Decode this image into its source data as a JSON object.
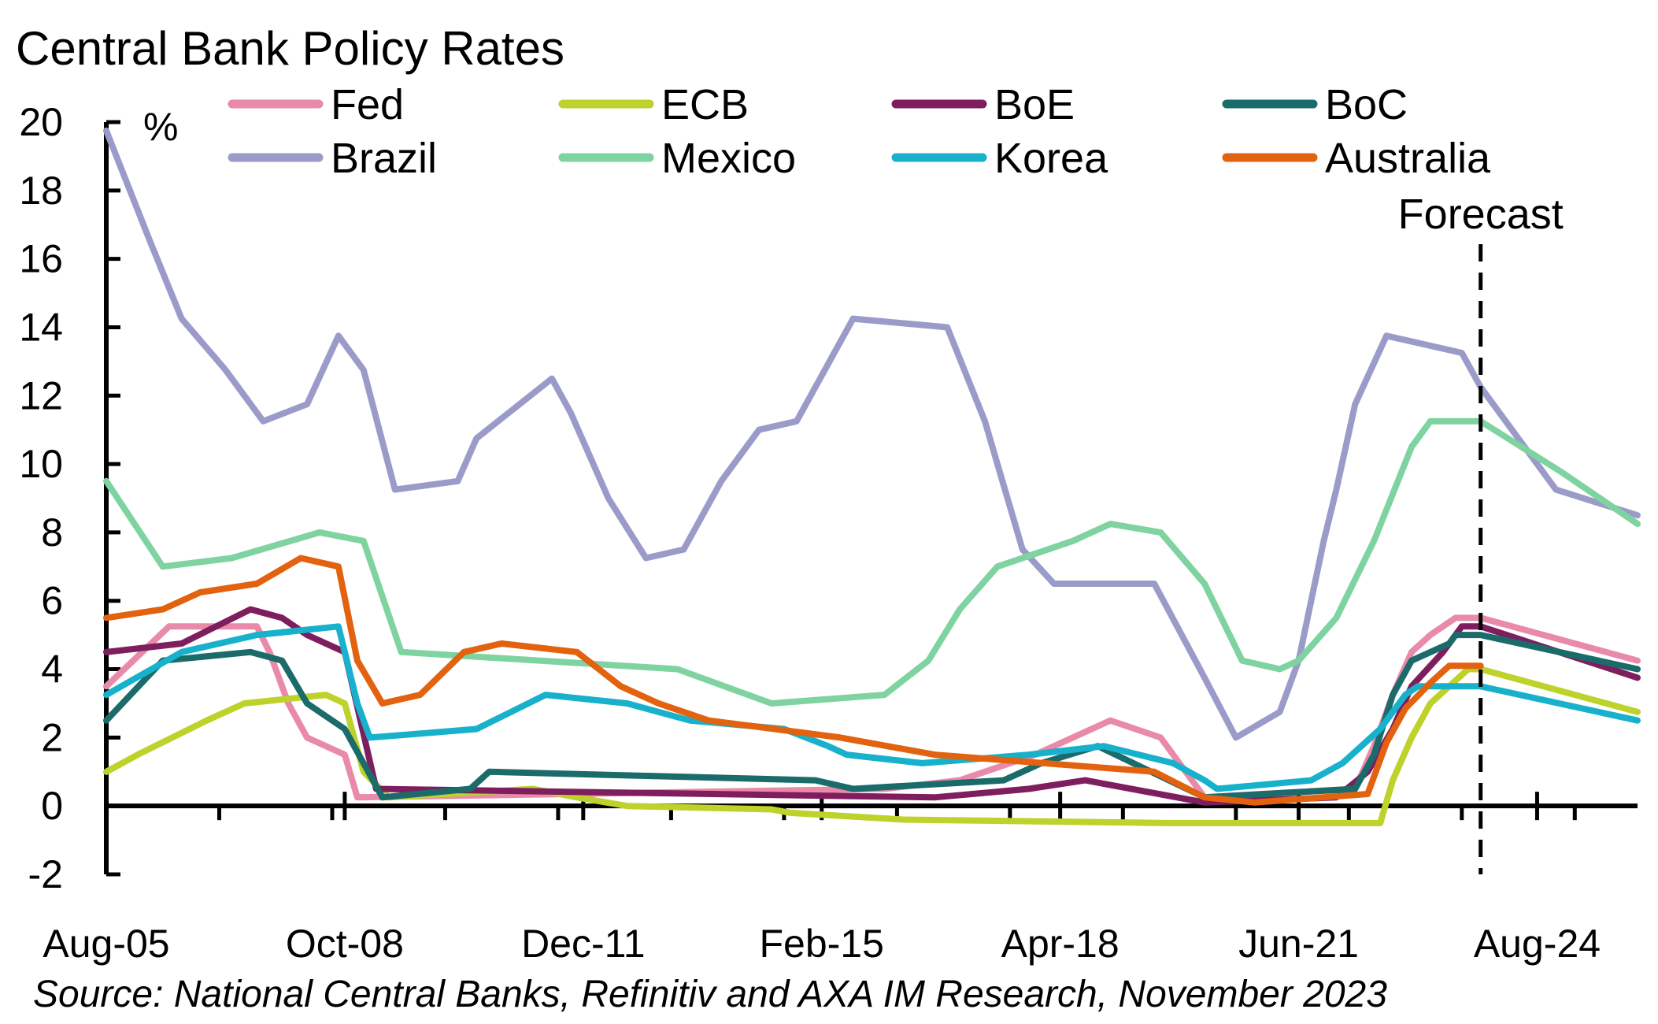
{
  "chart_data": {
    "type": "line",
    "title": "Central Bank Policy Rates",
    "ylabel": "%",
    "xlabel": "",
    "source": "Source: National Central Banks, Refinitiv and AXA IM Research, November 2023",
    "annotation": "Forecast",
    "forecast_start": "2023-11",
    "ylim": [
      -2,
      20
    ],
    "yticks": [
      -2,
      0,
      2,
      4,
      6,
      8,
      10,
      12,
      14,
      16,
      18,
      20
    ],
    "xlim": [
      "2005-08",
      "2025-12"
    ],
    "xticks": [
      {
        "date": "2005-08",
        "label": "Aug-05"
      },
      {
        "date": "2008-10",
        "label": "Oct-08"
      },
      {
        "date": "2011-12",
        "label": "Dec-11"
      },
      {
        "date": "2015-02",
        "label": "Feb-15"
      },
      {
        "date": "2018-04",
        "label": "Apr-18"
      },
      {
        "date": "2021-06",
        "label": "Jun-21"
      },
      {
        "date": "2024-08",
        "label": "Aug-24"
      }
    ],
    "grid": false,
    "legend_placement": "top",
    "series": [
      {
        "name": "Fed",
        "color": "#E98AAA",
        "points": [
          [
            "2005-08",
            3.5
          ],
          [
            "2006-06",
            5.25
          ],
          [
            "2007-08",
            5.25
          ],
          [
            "2007-10",
            4.5
          ],
          [
            "2008-01",
            3.0
          ],
          [
            "2008-04",
            2.0
          ],
          [
            "2008-10",
            1.5
          ],
          [
            "2008-12",
            0.25
          ],
          [
            "2015-12",
            0.5
          ],
          [
            "2016-12",
            0.75
          ],
          [
            "2017-12",
            1.5
          ],
          [
            "2018-12",
            2.5
          ],
          [
            "2019-08",
            2.0
          ],
          [
            "2020-03",
            0.25
          ],
          [
            "2022-03",
            0.5
          ],
          [
            "2022-06",
            1.75
          ],
          [
            "2022-09",
            3.25
          ],
          [
            "2022-12",
            4.5
          ],
          [
            "2023-03",
            5.0
          ],
          [
            "2023-07",
            5.5
          ],
          [
            "2023-11",
            5.5
          ],
          [
            "2025-12",
            4.25
          ]
        ]
      },
      {
        "name": "ECB",
        "color": "#BDD22A",
        "points": [
          [
            "2005-08",
            1.0
          ],
          [
            "2006-01",
            1.5
          ],
          [
            "2006-12",
            2.5
          ],
          [
            "2007-06",
            3.0
          ],
          [
            "2008-07",
            3.25
          ],
          [
            "2008-10",
            3.0
          ],
          [
            "2009-01",
            1.0
          ],
          [
            "2009-05",
            0.25
          ],
          [
            "2011-04",
            0.5
          ],
          [
            "2011-11",
            0.25
          ],
          [
            "2012-07",
            0.0
          ],
          [
            "2014-06",
            -0.1
          ],
          [
            "2014-09",
            -0.2
          ],
          [
            "2016-03",
            -0.4
          ],
          [
            "2019-09",
            -0.5
          ],
          [
            "2022-07",
            -0.5
          ],
          [
            "2022-09",
            0.75
          ],
          [
            "2022-12",
            2.0
          ],
          [
            "2023-03",
            3.0
          ],
          [
            "2023-09",
            4.0
          ],
          [
            "2023-11",
            4.0
          ],
          [
            "2025-12",
            2.75
          ]
        ]
      },
      {
        "name": "BoE",
        "color": "#7E1E5E",
        "points": [
          [
            "2005-08",
            4.5
          ],
          [
            "2006-08",
            4.75
          ],
          [
            "2007-07",
            5.75
          ],
          [
            "2007-12",
            5.5
          ],
          [
            "2008-04",
            5.0
          ],
          [
            "2008-10",
            4.5
          ],
          [
            "2009-03",
            0.5
          ],
          [
            "2016-08",
            0.25
          ],
          [
            "2017-11",
            0.5
          ],
          [
            "2018-08",
            0.75
          ],
          [
            "2020-03",
            0.1
          ],
          [
            "2021-12",
            0.25
          ],
          [
            "2022-05",
            1.0
          ],
          [
            "2022-09",
            2.25
          ],
          [
            "2022-12",
            3.5
          ],
          [
            "2023-05",
            4.5
          ],
          [
            "2023-08",
            5.25
          ],
          [
            "2023-11",
            5.25
          ],
          [
            "2025-12",
            3.75
          ]
        ]
      },
      {
        "name": "BoC",
        "color": "#1B6B6B",
        "points": [
          [
            "2005-08",
            2.5
          ],
          [
            "2006-05",
            4.25
          ],
          [
            "2007-07",
            4.5
          ],
          [
            "2007-12",
            4.25
          ],
          [
            "2008-04",
            3.0
          ],
          [
            "2008-10",
            2.25
          ],
          [
            "2009-04",
            0.25
          ],
          [
            "2010-06",
            0.5
          ],
          [
            "2010-09",
            1.0
          ],
          [
            "2015-01",
            0.75
          ],
          [
            "2015-07",
            0.5
          ],
          [
            "2017-07",
            0.75
          ],
          [
            "2018-01",
            1.25
          ],
          [
            "2018-10",
            1.75
          ],
          [
            "2020-03",
            0.25
          ],
          [
            "2022-03",
            0.5
          ],
          [
            "2022-06",
            1.5
          ],
          [
            "2022-09",
            3.25
          ],
          [
            "2022-12",
            4.25
          ],
          [
            "2023-06",
            4.75
          ],
          [
            "2023-07",
            5.0
          ],
          [
            "2023-11",
            5.0
          ],
          [
            "2025-12",
            4.0
          ]
        ]
      },
      {
        "name": "Brazil",
        "color": "#9B9BCA",
        "points": [
          [
            "2005-08",
            19.75
          ],
          [
            "2006-03",
            16.5
          ],
          [
            "2006-08",
            14.25
          ],
          [
            "2007-03",
            12.75
          ],
          [
            "2007-09",
            11.25
          ],
          [
            "2008-04",
            11.75
          ],
          [
            "2008-09",
            13.75
          ],
          [
            "2009-01",
            12.75
          ],
          [
            "2009-06",
            9.25
          ],
          [
            "2010-04",
            9.5
          ],
          [
            "2010-07",
            10.75
          ],
          [
            "2011-07",
            12.5
          ],
          [
            "2011-10",
            11.5
          ],
          [
            "2012-04",
            9.0
          ],
          [
            "2012-10",
            7.25
          ],
          [
            "2013-04",
            7.5
          ],
          [
            "2013-10",
            9.5
          ],
          [
            "2014-04",
            11.0
          ],
          [
            "2014-10",
            11.25
          ],
          [
            "2015-07",
            14.25
          ],
          [
            "2016-10",
            14.0
          ],
          [
            "2017-04",
            11.25
          ],
          [
            "2017-10",
            7.5
          ],
          [
            "2018-03",
            6.5
          ],
          [
            "2019-07",
            6.5
          ],
          [
            "2020-03",
            3.75
          ],
          [
            "2020-08",
            2.0
          ],
          [
            "2021-03",
            2.75
          ],
          [
            "2021-06",
            4.25
          ],
          [
            "2021-10",
            7.75
          ],
          [
            "2021-12",
            9.25
          ],
          [
            "2022-03",
            11.75
          ],
          [
            "2022-08",
            13.75
          ],
          [
            "2023-08",
            13.25
          ],
          [
            "2023-11",
            12.25
          ],
          [
            "2024-11",
            9.25
          ],
          [
            "2025-12",
            8.5
          ]
        ]
      },
      {
        "name": "Mexico",
        "color": "#7FD3A0",
        "points": [
          [
            "2005-08",
            9.5
          ],
          [
            "2006-05",
            7.0
          ],
          [
            "2007-04",
            7.25
          ],
          [
            "2008-06",
            8.0
          ],
          [
            "2009-01",
            7.75
          ],
          [
            "2009-07",
            4.5
          ],
          [
            "2013-03",
            4.0
          ],
          [
            "2014-06",
            3.0
          ],
          [
            "2015-12",
            3.25
          ],
          [
            "2016-07",
            4.25
          ],
          [
            "2016-12",
            5.75
          ],
          [
            "2017-06",
            7.0
          ],
          [
            "2018-06",
            7.75
          ],
          [
            "2018-12",
            8.25
          ],
          [
            "2019-08",
            8.0
          ],
          [
            "2020-03",
            6.5
          ],
          [
            "2020-09",
            4.25
          ],
          [
            "2021-03",
            4.0
          ],
          [
            "2021-06",
            4.25
          ],
          [
            "2021-12",
            5.5
          ],
          [
            "2022-06",
            7.75
          ],
          [
            "2022-12",
            10.5
          ],
          [
            "2023-03",
            11.25
          ],
          [
            "2023-11",
            11.25
          ],
          [
            "2024-12",
            9.75
          ],
          [
            "2025-12",
            8.25
          ]
        ]
      },
      {
        "name": "Korea",
        "color": "#18B1CC",
        "points": [
          [
            "2005-08",
            3.25
          ],
          [
            "2006-08",
            4.5
          ],
          [
            "2007-08",
            5.0
          ],
          [
            "2008-09",
            5.25
          ],
          [
            "2008-12",
            3.0
          ],
          [
            "2009-02",
            2.0
          ],
          [
            "2010-07",
            2.25
          ],
          [
            "2011-06",
            3.25
          ],
          [
            "2012-07",
            3.0
          ],
          [
            "2013-05",
            2.5
          ],
          [
            "2014-08",
            2.25
          ],
          [
            "2015-03",
            1.75
          ],
          [
            "2015-06",
            1.5
          ],
          [
            "2016-06",
            1.25
          ],
          [
            "2017-11",
            1.5
          ],
          [
            "2018-11",
            1.75
          ],
          [
            "2019-10",
            1.25
          ],
          [
            "2020-03",
            0.75
          ],
          [
            "2020-05",
            0.5
          ],
          [
            "2021-08",
            0.75
          ],
          [
            "2022-01",
            1.25
          ],
          [
            "2022-07",
            2.25
          ],
          [
            "2022-11",
            3.25
          ],
          [
            "2023-01",
            3.5
          ],
          [
            "2023-11",
            3.5
          ],
          [
            "2025-12",
            2.5
          ]
        ]
      },
      {
        "name": "Australia",
        "color": "#E2620F",
        "points": [
          [
            "2005-08",
            5.5
          ],
          [
            "2006-05",
            5.75
          ],
          [
            "2006-11",
            6.25
          ],
          [
            "2007-08",
            6.5
          ],
          [
            "2008-03",
            7.25
          ],
          [
            "2008-09",
            7.0
          ],
          [
            "2008-12",
            4.25
          ],
          [
            "2009-04",
            3.0
          ],
          [
            "2009-10",
            3.25
          ],
          [
            "2010-05",
            4.5
          ],
          [
            "2010-11",
            4.75
          ],
          [
            "2011-11",
            4.5
          ],
          [
            "2012-06",
            3.5
          ],
          [
            "2012-12",
            3.0
          ],
          [
            "2013-08",
            2.5
          ],
          [
            "2015-05",
            2.0
          ],
          [
            "2016-08",
            1.5
          ],
          [
            "2019-07",
            1.0
          ],
          [
            "2020-03",
            0.25
          ],
          [
            "2020-11",
            0.1
          ],
          [
            "2022-05",
            0.35
          ],
          [
            "2022-08",
            1.85
          ],
          [
            "2022-11",
            2.85
          ],
          [
            "2023-03",
            3.6
          ],
          [
            "2023-06",
            4.1
          ],
          [
            "2023-11",
            4.1
          ]
        ]
      }
    ]
  }
}
